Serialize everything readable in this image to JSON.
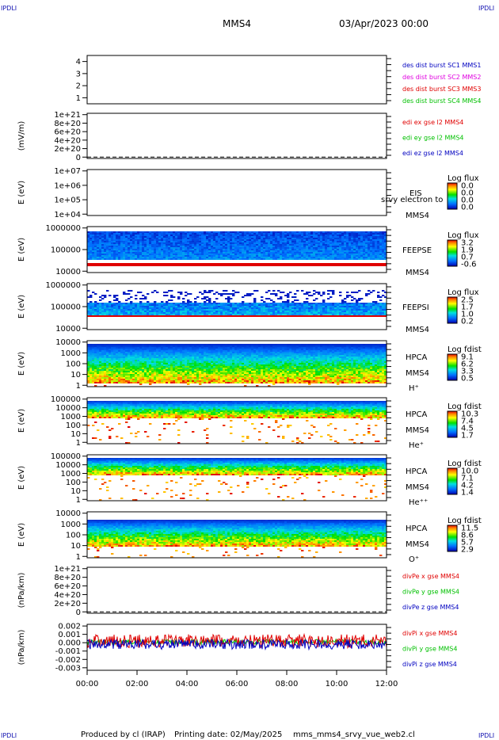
{
  "corner_label": "IPDLI",
  "header": {
    "spacecraft": "MMS4",
    "datetime": "03/Apr/2023 00:00"
  },
  "footer": {
    "produced_by": "Produced by cl (IRAP)",
    "printing_date": "Printing date: 02/May/2025",
    "file": "mms_mms4_srvy_vue_web2.cl"
  },
  "colors": {
    "corner": "#1010b0",
    "red": "#e00000",
    "green": "#00c000",
    "blue": "#0000c0",
    "magenta": "#e000e0"
  },
  "chart_data": [
    {
      "type": "line",
      "id": "availability",
      "ylabel": "",
      "yticks": [
        "1",
        "2",
        "3",
        "4"
      ],
      "ylim": [
        0.5,
        4.5
      ],
      "legend": [
        {
          "text": "des dist burst SC1 MMS1",
          "color": "#0000c0"
        },
        {
          "text": "des dist burst SC2 MMS2",
          "color": "#e000e0"
        },
        {
          "text": "des dist burst SC3 MMS3",
          "color": "#e00000"
        },
        {
          "text": "des dist burst SC4 MMS4",
          "color": "#00c000"
        }
      ],
      "series": []
    },
    {
      "type": "line",
      "id": "edi-e",
      "ylabel": "(mV/m)",
      "yticks": [
        "1e+21",
        "8e+20",
        "6e+20",
        "4e+20",
        "2e+20",
        "0"
      ],
      "ylim": [
        0,
        1e+21
      ],
      "zero_line": true,
      "legend": [
        {
          "text": "edi ex gse l2 MMS4",
          "color": "#e00000"
        },
        {
          "text": "edi ey gse l2 MMS4",
          "color": "#00c000"
        },
        {
          "text": "edi ez gse l2 MMS4",
          "color": "#0000c0"
        }
      ],
      "series": []
    },
    {
      "type": "heatmap",
      "id": "eis",
      "ylabel": "E (eV)",
      "yscale": "log",
      "yticks": [
        "1e+07",
        "1e+06",
        "1e+05",
        "1e+04"
      ],
      "ylim": [
        10000,
        10000000
      ],
      "right_labels": [
        "EIS",
        "MMS4"
      ],
      "overlay_text": "srvy electron to",
      "colorbar": {
        "title": "Log flux",
        "values": [
          "0.0",
          "0.0",
          "0.0",
          "0.0"
        ]
      }
    },
    {
      "type": "heatmap",
      "id": "feeps-e",
      "ylabel": "E (eV)",
      "yscale": "log",
      "yticks": [
        "1000000",
        "100000",
        "10000"
      ],
      "ylim": [
        10000,
        1000000
      ],
      "right_labels": [
        "FEEPSE",
        "MMS4"
      ],
      "colorbar": {
        "title": "Log flux",
        "values": [
          "3.2",
          "1.9",
          "0.7",
          "-0.6"
        ]
      }
    },
    {
      "type": "heatmap",
      "id": "feeps-i",
      "ylabel": "E (eV)",
      "yscale": "log",
      "yticks": [
        "1000000",
        "100000",
        "10000"
      ],
      "ylim": [
        10000,
        1000000
      ],
      "right_labels": [
        "FEEPSI",
        "MMS4"
      ],
      "colorbar": {
        "title": "Log flux",
        "values": [
          "2.5",
          "1.7",
          "1.0",
          "0.2"
        ]
      }
    },
    {
      "type": "heatmap",
      "id": "hpca-h",
      "ylabel": "E (eV)",
      "yscale": "log",
      "yticks": [
        "10000",
        "1000",
        "100",
        "10",
        "1"
      ],
      "ylim": [
        1,
        30000
      ],
      "right_labels": [
        "HPCA",
        "MMS4",
        "H⁺"
      ],
      "colorbar": {
        "title": "Log fdist",
        "values": [
          "9.1",
          "6.2",
          "3.3",
          "0.5"
        ]
      }
    },
    {
      "type": "heatmap",
      "id": "hpca-he",
      "ylabel": "E (eV)",
      "yscale": "log",
      "yticks": [
        "100000",
        "10000",
        "1000",
        "100",
        "10",
        "1"
      ],
      "ylim": [
        1,
        100000
      ],
      "right_labels": [
        "HPCA",
        "MMS4",
        "He⁺"
      ],
      "colorbar": {
        "title": "Log fdist",
        "values": [
          "10.3",
          "7.4",
          "4.5",
          "1.7"
        ]
      }
    },
    {
      "type": "heatmap",
      "id": "hpca-he2",
      "ylabel": "E (eV)",
      "yscale": "log",
      "yticks": [
        "100000",
        "10000",
        "1000",
        "100",
        "10",
        "1"
      ],
      "ylim": [
        1,
        100000
      ],
      "right_labels": [
        "HPCA",
        "MMS4",
        "He⁺⁺"
      ],
      "colorbar": {
        "title": "Log fdist",
        "values": [
          "10.0",
          "7.1",
          "4.2",
          "1.4"
        ]
      }
    },
    {
      "type": "heatmap",
      "id": "hpca-o",
      "ylabel": "E (eV)",
      "yscale": "log",
      "yticks": [
        "10000",
        "1000",
        "100",
        "10",
        "1"
      ],
      "ylim": [
        1,
        30000
      ],
      "right_labels": [
        "HPCA",
        "MMS4",
        "O⁺"
      ],
      "colorbar": {
        "title": "Log fdist",
        "values": [
          "11.5",
          "8.6",
          "5.7",
          "2.9"
        ]
      }
    },
    {
      "type": "line",
      "id": "divpe",
      "ylabel": "(nPa/km)",
      "yticks": [
        "1e+21",
        "8e+20",
        "6e+20",
        "4e+20",
        "2e+20",
        "0"
      ],
      "ylim": [
        0,
        1e+21
      ],
      "zero_line": true,
      "legend": [
        {
          "text": "divPe x gse MMS4",
          "color": "#e00000"
        },
        {
          "text": "divPe y gse MMS4",
          "color": "#00c000"
        },
        {
          "text": "divPe z gse MMS4",
          "color": "#0000c0"
        }
      ],
      "series": []
    },
    {
      "type": "line",
      "id": "divpi",
      "ylabel": "(nPa/km)",
      "yticks": [
        "0.002",
        "0.001",
        "0.000",
        "-0.001",
        "-0.002",
        "-0.003"
      ],
      "ylim": [
        -0.0033,
        0.0022
      ],
      "legend": [
        {
          "text": "divPi x gse MMS4",
          "color": "#e00000"
        },
        {
          "text": "divPi y gse MMS4",
          "color": "#00c000"
        },
        {
          "text": "divPi z gse MMS4",
          "color": "#0000c0"
        }
      ],
      "series": []
    }
  ],
  "xaxis": {
    "ticks": [
      "00:00",
      "02:00",
      "04:00",
      "06:00",
      "08:00",
      "10:00",
      "12:00"
    ]
  }
}
